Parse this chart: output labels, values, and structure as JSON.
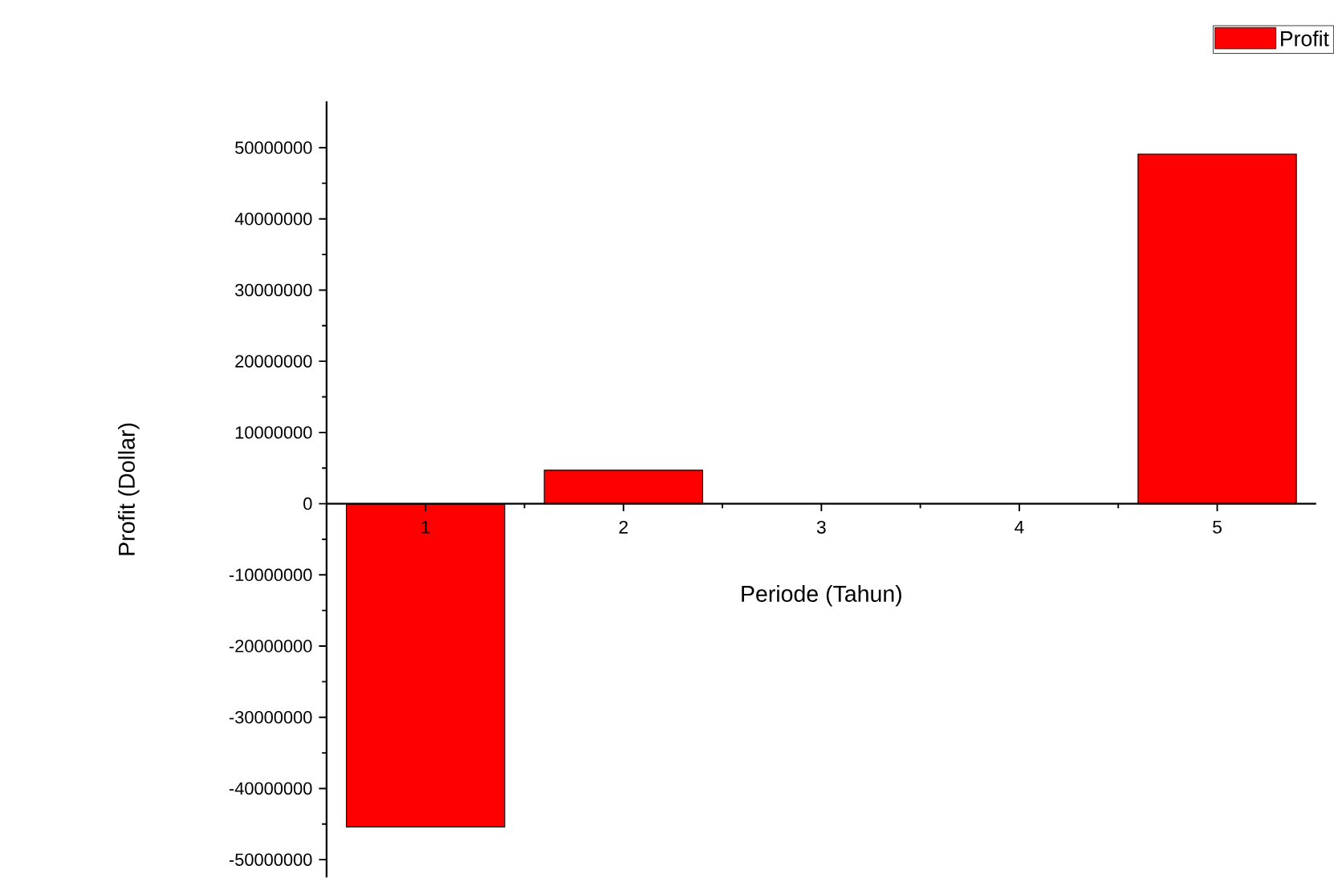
{
  "chart_data": {
    "type": "bar",
    "xlabel": "Periode (Tahun)",
    "ylabel": "Profit (Dollar)",
    "x": [
      1,
      2,
      3,
      4,
      5
    ],
    "series": [
      {
        "name": "Profit",
        "color": "#ff0000",
        "values": [
          -45400000,
          4700000,
          null,
          null,
          49100000
        ]
      }
    ],
    "xlim": [
      0.5,
      5.5
    ],
    "xticks": [
      1,
      2,
      3,
      4,
      5
    ],
    "ylim": [
      -52500000,
      56500000
    ],
    "yticks": [
      -50000000,
      -40000000,
      -30000000,
      -20000000,
      -10000000,
      0,
      10000000,
      20000000,
      30000000,
      40000000,
      50000000
    ],
    "legend": "top right",
    "grid": false
  }
}
